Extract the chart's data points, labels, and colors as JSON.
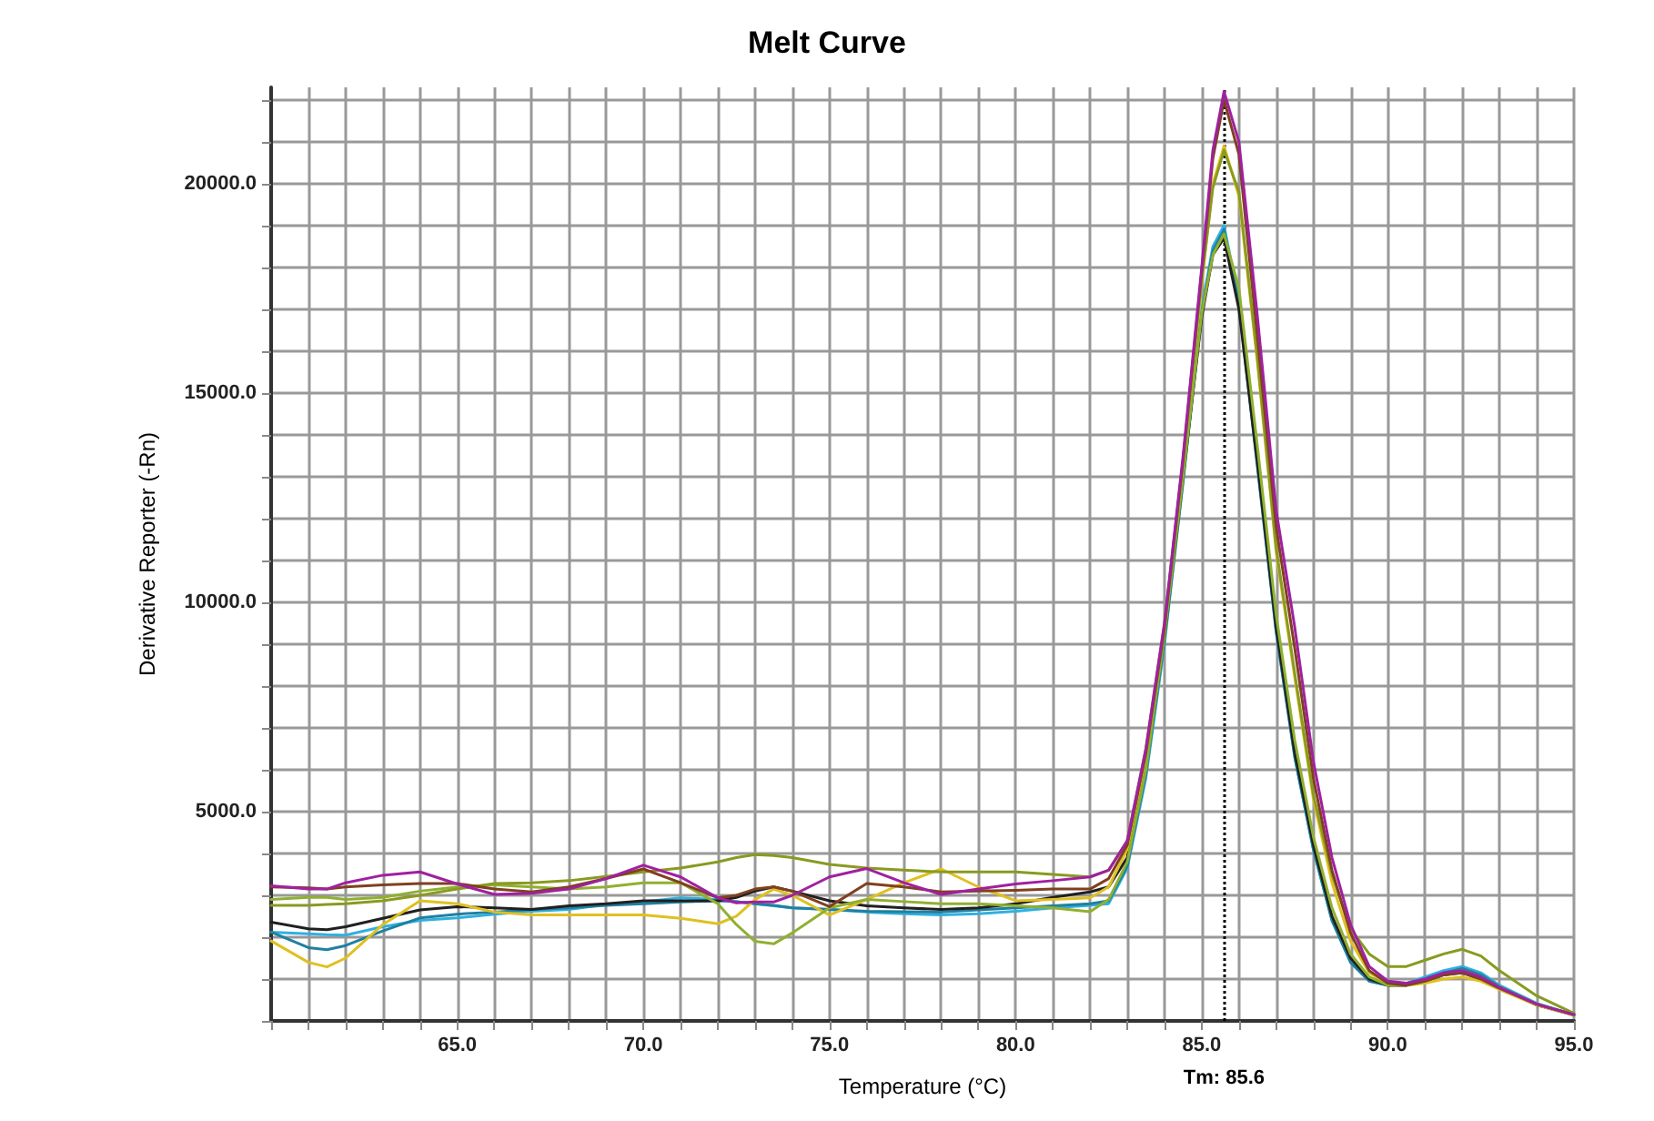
{
  "chart_data": {
    "type": "line",
    "title": "Melt Curve",
    "xlabel": "Temperature (°C)",
    "ylabel": "Derivative Reporter (-Rn)",
    "x": [
      60,
      61,
      61.5,
      62,
      63,
      64,
      65,
      66,
      67,
      68,
      69,
      70,
      71,
      72,
      72.5,
      73,
      73.5,
      74,
      75,
      76,
      77,
      78,
      79,
      80,
      81,
      82,
      82.5,
      83,
      83.5,
      84,
      84.5,
      85,
      85.3,
      85.6,
      86,
      86.5,
      87,
      87.5,
      88,
      88.5,
      89,
      89.5,
      90,
      90.5,
      91,
      91.5,
      92,
      92.5,
      93,
      94,
      95
    ],
    "series": [
      {
        "color": "#a020a0",
        "values": [
          3230,
          3150,
          3150,
          3300,
          3480,
          3560,
          3270,
          3020,
          3050,
          3150,
          3400,
          3720,
          3440,
          2940,
          2820,
          2840,
          2840,
          3000,
          3440,
          3640,
          3300,
          3020,
          3150,
          3270,
          3350,
          3440,
          3600,
          4300,
          6500,
          9500,
          13500,
          18000,
          20800,
          22200,
          21000,
          16800,
          12200,
          9400,
          6200,
          3900,
          2300,
          1300,
          950,
          900,
          1000,
          1150,
          1200,
          1050,
          800,
          400,
          150
        ]
      },
      {
        "color": "#804020",
        "values": [
          3200,
          3180,
          3150,
          3200,
          3250,
          3280,
          3280,
          3150,
          3080,
          3200,
          3400,
          3630,
          3300,
          2940,
          3000,
          3150,
          3200,
          3100,
          2730,
          3280,
          3200,
          3080,
          3100,
          3120,
          3150,
          3150,
          3400,
          4200,
          6400,
          9400,
          13400,
          17900,
          20600,
          22000,
          20700,
          16300,
          11800,
          8900,
          5800,
          3600,
          2100,
          1200,
          900,
          850,
          950,
          1100,
          1150,
          1000,
          780,
          400,
          150
        ]
      },
      {
        "color": "#8a9a20",
        "values": [
          2760,
          2760,
          2780,
          2800,
          2870,
          3000,
          3150,
          3280,
          3300,
          3350,
          3450,
          3560,
          3650,
          3800,
          3900,
          3970,
          3950,
          3900,
          3740,
          3650,
          3600,
          3560,
          3560,
          3560,
          3500,
          3440,
          3600,
          4300,
          6500,
          9500,
          13400,
          17700,
          19900,
          20800,
          19800,
          15800,
          11300,
          8300,
          5400,
          3500,
          2200,
          1600,
          1300,
          1300,
          1450,
          1600,
          1710,
          1550,
          1200,
          600,
          180
        ]
      },
      {
        "color": "#90b030",
        "values": [
          2900,
          2950,
          2950,
          2900,
          2950,
          3100,
          3200,
          3250,
          3200,
          3150,
          3200,
          3300,
          3300,
          2800,
          2300,
          1900,
          1840,
          2100,
          2700,
          2900,
          2850,
          2800,
          2800,
          2750,
          2700,
          2610,
          2900,
          3800,
          6000,
          9200,
          13000,
          16900,
          18300,
          18800,
          17500,
          13700,
          9700,
          6700,
          4400,
          2700,
          1600,
          1050,
          850,
          850,
          950,
          1100,
          1200,
          1050,
          800,
          400,
          150
        ]
      },
      {
        "color": "#e0c020",
        "values": [
          1910,
          1400,
          1290,
          1500,
          2300,
          2870,
          2800,
          2600,
          2530,
          2530,
          2530,
          2530,
          2450,
          2320,
          2500,
          2900,
          3150,
          3000,
          2530,
          2900,
          3300,
          3630,
          3200,
          2870,
          2900,
          2940,
          3200,
          4100,
          6300,
          9400,
          13300,
          17600,
          20000,
          20900,
          19700,
          15700,
          11200,
          8200,
          5300,
          3300,
          1900,
          1150,
          900,
          850,
          900,
          1000,
          1050,
          950,
          750,
          380,
          140
        ]
      },
      {
        "color": "#202020",
        "values": [
          2360,
          2200,
          2180,
          2250,
          2450,
          2650,
          2730,
          2700,
          2660,
          2750,
          2800,
          2870,
          2870,
          2870,
          2950,
          3100,
          3200,
          3100,
          2870,
          2750,
          2700,
          2660,
          2700,
          2800,
          2950,
          3080,
          3200,
          3900,
          6100,
          9200,
          13000,
          16800,
          18300,
          18700,
          17000,
          13300,
          9400,
          6400,
          4200,
          2500,
          1500,
          1000,
          850,
          850,
          950,
          1100,
          1150,
          1000,
          780,
          380,
          140
        ]
      },
      {
        "color": "#2080a0",
        "values": [
          2120,
          1750,
          1700,
          1800,
          2150,
          2460,
          2550,
          2600,
          2660,
          2700,
          2760,
          2800,
          2840,
          2870,
          2850,
          2800,
          2760,
          2700,
          2660,
          2620,
          2610,
          2600,
          2650,
          2700,
          2750,
          2800,
          2870,
          3700,
          5900,
          9100,
          12900,
          16900,
          18400,
          18900,
          17100,
          13200,
          9300,
          6300,
          4100,
          2400,
          1400,
          950,
          850,
          900,
          1000,
          1150,
          1250,
          1100,
          820,
          400,
          140
        ]
      },
      {
        "color": "#30b0e0",
        "values": [
          2120,
          2080,
          2060,
          2050,
          2250,
          2400,
          2460,
          2550,
          2620,
          2660,
          2780,
          2850,
          2940,
          2900,
          2850,
          2800,
          2750,
          2700,
          2660,
          2600,
          2560,
          2530,
          2560,
          2620,
          2700,
          2760,
          2800,
          3650,
          5800,
          9000,
          12900,
          17000,
          18500,
          19000,
          17200,
          13300,
          9300,
          6300,
          4100,
          2400,
          1400,
          950,
          850,
          900,
          1050,
          1200,
          1300,
          1150,
          850,
          420,
          150
        ]
      }
    ],
    "xlim": [
      60,
      95
    ],
    "ylim": [
      0,
      22300
    ],
    "xticks": [
      {
        "value": 60,
        "label": null
      },
      {
        "value": 61,
        "label": null
      },
      {
        "value": 62,
        "label": null
      },
      {
        "value": 63,
        "label": null
      },
      {
        "value": 64,
        "label": null
      },
      {
        "value": 65,
        "label": "65.0"
      },
      {
        "value": 66,
        "label": null
      },
      {
        "value": 67,
        "label": null
      },
      {
        "value": 68,
        "label": null
      },
      {
        "value": 69,
        "label": null
      },
      {
        "value": 70,
        "label": "70.0"
      },
      {
        "value": 71,
        "label": null
      },
      {
        "value": 72,
        "label": null
      },
      {
        "value": 73,
        "label": null
      },
      {
        "value": 74,
        "label": null
      },
      {
        "value": 75,
        "label": "75.0"
      },
      {
        "value": 76,
        "label": null
      },
      {
        "value": 77,
        "label": null
      },
      {
        "value": 78,
        "label": null
      },
      {
        "value": 79,
        "label": null
      },
      {
        "value": 80,
        "label": "80.0"
      },
      {
        "value": 81,
        "label": null
      },
      {
        "value": 82,
        "label": null
      },
      {
        "value": 83,
        "label": null
      },
      {
        "value": 84,
        "label": null
      },
      {
        "value": 85,
        "label": "85.0"
      },
      {
        "value": 86,
        "label": null
      },
      {
        "value": 87,
        "label": null
      },
      {
        "value": 88,
        "label": null
      },
      {
        "value": 89,
        "label": null
      },
      {
        "value": 90,
        "label": "90.0"
      },
      {
        "value": 91,
        "label": null
      },
      {
        "value": 92,
        "label": null
      },
      {
        "value": 93,
        "label": null
      },
      {
        "value": 94,
        "label": null
      },
      {
        "value": 95,
        "label": "95.0"
      }
    ],
    "yticks": [
      {
        "value": 0,
        "label": null
      },
      {
        "value": 1000,
        "label": null
      },
      {
        "value": 2000,
        "label": null
      },
      {
        "value": 3000,
        "label": null
      },
      {
        "value": 4000,
        "label": null
      },
      {
        "value": 5000,
        "label": "5000.0"
      },
      {
        "value": 6000,
        "label": null
      },
      {
        "value": 7000,
        "label": null
      },
      {
        "value": 8000,
        "label": null
      },
      {
        "value": 9000,
        "label": null
      },
      {
        "value": 10000,
        "label": "10000.0"
      },
      {
        "value": 11000,
        "label": null
      },
      {
        "value": 12000,
        "label": null
      },
      {
        "value": 13000,
        "label": null
      },
      {
        "value": 14000,
        "label": null
      },
      {
        "value": 15000,
        "label": "15000.0"
      },
      {
        "value": 16000,
        "label": null
      },
      {
        "value": 17000,
        "label": null
      },
      {
        "value": 18000,
        "label": null
      },
      {
        "value": 19000,
        "label": null
      },
      {
        "value": 20000,
        "label": "20000.0"
      },
      {
        "value": 21000,
        "label": null
      },
      {
        "value": 22000,
        "label": null
      }
    ],
    "ref_lines": [
      {
        "axis": "x",
        "value": 85.6,
        "label": "Tm: 85.6",
        "color": "#000000",
        "line_style": "dotted"
      }
    ],
    "grid": true,
    "marker": "none",
    "line_style": "solid"
  }
}
